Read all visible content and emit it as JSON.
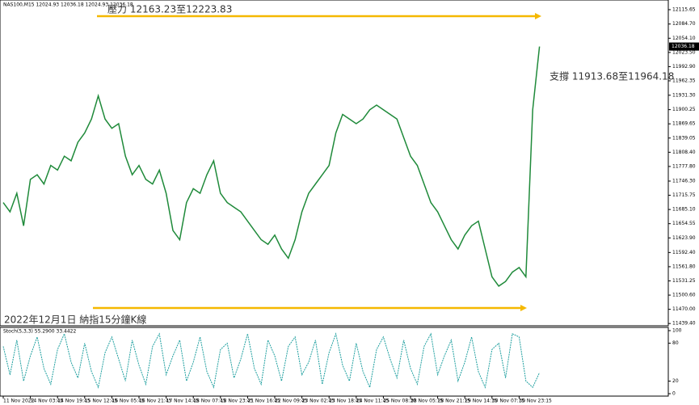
{
  "chart_data": [
    {
      "type": "line",
      "title": "NAS100,M15  12024.93 12036.18 12024.93 12036.18",
      "annotations": [
        "壓力 12163.23至12223.83",
        "支撐 11913.68至11964.18",
        "2022年12月1日 納指15分鐘K線"
      ],
      "current_price": 12036.18,
      "categories": [
        "11 Nov 2022",
        null,
        null,
        null,
        "14 Nov 03:45",
        null,
        null,
        null,
        "14 Nov 19:45",
        null,
        null,
        null,
        "15 Nov 12:45",
        null,
        null,
        null,
        "16 Nov 05:45",
        null,
        null,
        null,
        "16 Nov 21:45",
        null,
        null,
        null,
        "17 Nov 14:45",
        null,
        null,
        null,
        "18 Nov 07:45",
        null,
        null,
        null,
        "18 Nov 23:45",
        null,
        null,
        null,
        "21 Nov 16:45",
        null,
        null,
        null,
        "22 Nov 09:45",
        null,
        null,
        null,
        "23 Nov 02:45",
        null,
        null,
        null,
        "23 Nov 18:45",
        null,
        null,
        null,
        "24 Nov 11:45",
        null,
        null,
        null,
        "25 Nov 08:30",
        null,
        null,
        null,
        "28 Nov 05:15",
        null,
        null,
        null,
        "28 Nov 21:15",
        null,
        null,
        null,
        "29 Nov 14:15",
        null,
        null,
        null,
        "30 Nov 07:15",
        null,
        null,
        null,
        "30 Nov 23:15",
        null,
        null,
        null
      ],
      "series": [
        {
          "name": "NAS100",
          "color": "#1f8a3a",
          "values": [
            11700,
            11680,
            11720,
            11650,
            11750,
            11760,
            11740,
            11780,
            11770,
            11800,
            11790,
            11830,
            11850,
            11880,
            11930,
            11880,
            11860,
            11870,
            11800,
            11760,
            11780,
            11750,
            11740,
            11770,
            11720,
            11640,
            11620,
            11700,
            11730,
            11720,
            11760,
            11790,
            11720,
            11700,
            11690,
            11680,
            11660,
            11640,
            11620,
            11610,
            11630,
            11600,
            11580,
            11620,
            11680,
            11720,
            11740,
            11760,
            11780,
            11850,
            11890,
            11880,
            11870,
            11880,
            11900,
            11910,
            11900,
            11890,
            11880,
            11840,
            11800,
            11780,
            11740,
            11700,
            11680,
            11650,
            11620,
            11600,
            11630,
            11650,
            11660,
            11600,
            11540,
            11520,
            11530,
            11550,
            11560,
            11540,
            11900,
            12036.18
          ]
        }
      ],
      "ylim": [
        11438,
        12133
      ],
      "yticks": [
        {
          "value": 12115.65,
          "label": "12115.65"
        },
        {
          "value": 12084.7,
          "label": "12084.70"
        },
        {
          "value": 12054.1,
          "label": "12054.10"
        },
        {
          "value": 12023.5,
          "label": "12023.50"
        },
        {
          "value": 11992.9,
          "label": "11992.90"
        },
        {
          "value": 11962.35,
          "label": "11962.35"
        },
        {
          "value": 11931.3,
          "label": "11931.30"
        },
        {
          "value": 11900.25,
          "label": "11900.25"
        },
        {
          "value": 11869.65,
          "label": "11869.65"
        },
        {
          "value": 11839.05,
          "label": "11839.05"
        },
        {
          "value": 11808.4,
          "label": "11808.40"
        },
        {
          "value": 11777.8,
          "label": "11777.80"
        },
        {
          "value": 11746.3,
          "label": "11746.30"
        },
        {
          "value": 11715.75,
          "label": "11715.75"
        },
        {
          "value": 11685.1,
          "label": "11685.10"
        },
        {
          "value": 11654.55,
          "label": "11654.55"
        },
        {
          "value": 11623.9,
          "label": "11623.90"
        },
        {
          "value": 11592.4,
          "label": "11592.40"
        },
        {
          "value": 11561.8,
          "label": "11561.80"
        },
        {
          "value": 11531.25,
          "label": "11531.25"
        },
        {
          "value": 11500.6,
          "label": "11500.60"
        },
        {
          "value": 11470,
          "label": "11470.00"
        },
        {
          "value": 11439.4,
          "label": "11439.40"
        }
      ]
    },
    {
      "type": "line",
      "title": "Stoch(5,3,3) 55.2900 33.4422",
      "series": [
        {
          "name": "Stoch",
          "color": "#20a0a0",
          "values": [
            75,
            30,
            85,
            20,
            60,
            90,
            40,
            15,
            70,
            95,
            50,
            25,
            80,
            35,
            10,
            65,
            90,
            55,
            20,
            85,
            45,
            15,
            75,
            95,
            30,
            60,
            85,
            20,
            50,
            90,
            35,
            10,
            70,
            80,
            25,
            55,
            95,
            40,
            15,
            85,
            60,
            20,
            75,
            90,
            30,
            50,
            85,
            15,
            65,
            95,
            45,
            20,
            80,
            35,
            10,
            70,
            90,
            55,
            25,
            85,
            40,
            15,
            75,
            95,
            30,
            60,
            85,
            20,
            50,
            90,
            35,
            10,
            70,
            80,
            25,
            95,
            90,
            20,
            10,
            33.4422
          ]
        }
      ],
      "ylim": [
        0,
        100
      ],
      "yticks": [
        100,
        80,
        20,
        0
      ]
    }
  ]
}
